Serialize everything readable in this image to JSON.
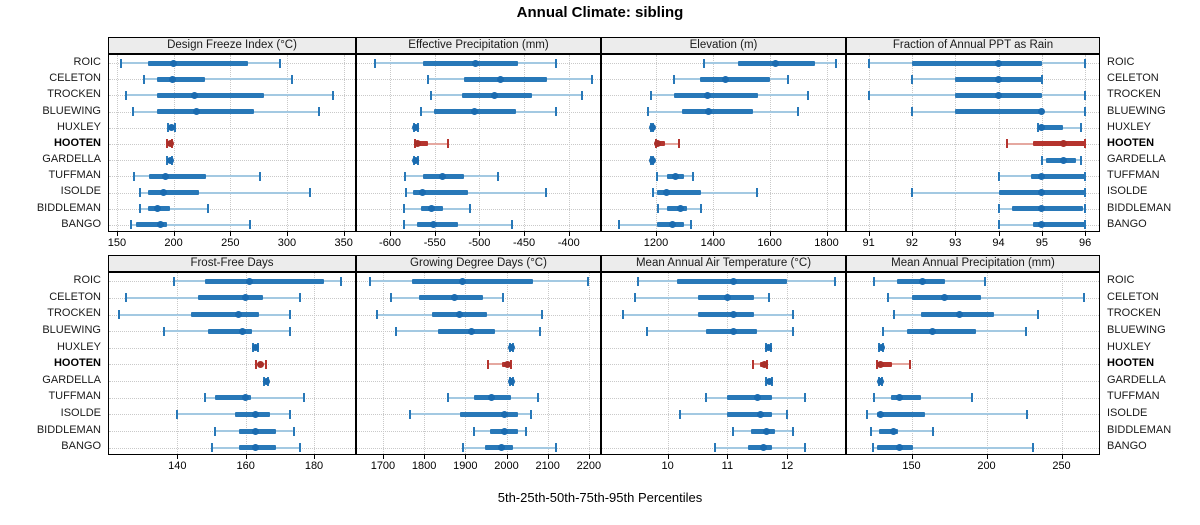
{
  "chart_data": {
    "type": "dotplot",
    "title": "Annual Climate: sibling",
    "caption": "5th-25th-50th-75th-95th Percentiles",
    "percentiles": [
      5,
      25,
      50,
      75,
      95
    ],
    "stations": [
      "ROIC",
      "CELETON",
      "TROCKEN",
      "BLUEWING",
      "HUXLEY",
      "HOOTEN",
      "GARDELLA",
      "TUFFMAN",
      "ISOLDE",
      "BIDDLEMAN",
      "BANGO"
    ],
    "highlight_station": "HOOTEN",
    "legend_position": "none",
    "grid": "dotted",
    "colors": {
      "series_blue": "#2878b8",
      "series_blue_light": "#a3c9e2",
      "series_blue_dot": "#1a6bb0",
      "highlight_red": "#b5342e",
      "highlight_red_light": "#e5a8a0",
      "highlight_red_dot": "#a82e28",
      "gridline": "#c9c9c9",
      "strip_bg": "#ececec",
      "panel_border": "#000000"
    },
    "panels": [
      {
        "title": "Design Freeze Index (°C)",
        "row": 0,
        "col": 0,
        "xlim": [
          143,
          360
        ],
        "ticks": [
          150,
          200,
          250,
          300,
          350
        ],
        "values": [
          [
            154,
            177,
            200,
            266,
            294
          ],
          [
            174,
            185,
            199,
            228,
            304
          ],
          [
            158,
            185,
            218,
            280,
            341
          ],
          [
            164,
            185,
            220,
            271,
            328
          ],
          [
            195,
            197,
            198,
            200,
            201
          ],
          [
            194,
            196,
            197,
            198,
            199
          ],
          [
            194,
            196,
            197,
            198,
            199
          ],
          [
            165,
            178,
            193,
            229,
            276
          ],
          [
            170,
            177,
            191,
            222,
            320
          ],
          [
            170,
            177,
            186,
            197,
            230
          ],
          [
            162,
            167,
            188,
            194,
            267
          ]
        ]
      },
      {
        "title": "Effective Precipitation (mm)",
        "row": 0,
        "col": 1,
        "xlim": [
          -637,
          -365
        ],
        "ticks": [
          -600,
          -550,
          -500,
          -450,
          -400
        ],
        "values": [
          [
            -617,
            -563,
            -504,
            -457,
            -414
          ],
          [
            -557,
            -517,
            -476,
            -424,
            -374
          ],
          [
            -554,
            -519,
            -483,
            -441,
            -385
          ],
          [
            -565,
            -551,
            -506,
            -459,
            -414
          ],
          [
            -573,
            -572,
            -571,
            -570,
            -569
          ],
          [
            -572,
            -571,
            -569,
            -558,
            -535
          ],
          [
            -573,
            -572,
            -571,
            -570,
            -569
          ],
          [
            -583,
            -563,
            -541,
            -517,
            -479
          ],
          [
            -582,
            -574,
            -564,
            -513,
            -426
          ],
          [
            -584,
            -565,
            -554,
            -541,
            -511
          ],
          [
            -584,
            -570,
            -551,
            -524,
            -463
          ]
        ]
      },
      {
        "title": "Elevation (m)",
        "row": 0,
        "col": 2,
        "xlim": [
          1010,
          1865
        ],
        "ticks": [
          1200,
          1400,
          1600,
          1800
        ],
        "values": [
          [
            1370,
            1490,
            1620,
            1760,
            1835
          ],
          [
            1262,
            1355,
            1445,
            1600,
            1663
          ],
          [
            1184,
            1265,
            1381,
            1558,
            1736
          ],
          [
            1172,
            1291,
            1384,
            1541,
            1698
          ],
          [
            1183,
            1185,
            1186,
            1188,
            1190
          ],
          [
            1199,
            1201,
            1204,
            1232,
            1280
          ],
          [
            1183,
            1185,
            1187,
            1189,
            1191
          ],
          [
            1203,
            1238,
            1267,
            1297,
            1331
          ],
          [
            1190,
            1203,
            1238,
            1360,
            1556
          ],
          [
            1207,
            1238,
            1285,
            1308,
            1360
          ],
          [
            1070,
            1203,
            1258,
            1297,
            1323
          ]
        ]
      },
      {
        "title": "Fraction of Annual PPT as Rain",
        "row": 0,
        "col": 3,
        "xlim": [
          90.5,
          96.32
        ],
        "ticks": [
          91,
          92,
          93,
          94,
          95,
          96
        ],
        "values": [
          [
            91,
            92,
            94,
            95,
            96
          ],
          [
            92,
            93,
            94,
            95,
            95
          ],
          [
            91,
            93,
            94,
            95,
            96
          ],
          [
            92,
            93,
            95,
            95,
            96
          ],
          [
            94.9,
            95,
            95,
            95.5,
            95.9
          ],
          [
            94.2,
            94.8,
            95.5,
            96,
            96
          ],
          [
            95,
            95.1,
            95.5,
            95.8,
            95.9
          ],
          [
            94,
            94.75,
            95,
            96,
            96
          ],
          [
            92,
            94,
            95,
            96,
            96
          ],
          [
            94,
            94.3,
            95,
            95.95,
            96
          ],
          [
            94,
            94.8,
            95,
            96,
            96
          ]
        ]
      },
      {
        "title": "Frost-Free Days",
        "row": 1,
        "col": 0,
        "xlim": [
          120,
          192
        ],
        "ticks": [
          140,
          160,
          180
        ],
        "values": [
          [
            139,
            148,
            161,
            183,
            188
          ],
          [
            125,
            146,
            160,
            165,
            176
          ],
          [
            123,
            144,
            158,
            164,
            173
          ],
          [
            136,
            149,
            159,
            162,
            173
          ],
          [
            162,
            162.5,
            163,
            163.2,
            163.7
          ],
          [
            163,
            163.8,
            164.3,
            164.8,
            166
          ],
          [
            165.3,
            165.7,
            166,
            166.2,
            166.6
          ],
          [
            148,
            151,
            160,
            161.5,
            177
          ],
          [
            140,
            157,
            163,
            167,
            173
          ],
          [
            151,
            158,
            163,
            169,
            174
          ],
          [
            150,
            158,
            163,
            169,
            176
          ]
        ]
      },
      {
        "title": "Growing Degree Days (°C)",
        "row": 1,
        "col": 1,
        "xlim": [
          1637,
          2227
        ],
        "ticks": [
          1700,
          1800,
          1900,
          2000,
          2100,
          2200
        ],
        "values": [
          [
            1669,
            1770,
            1894,
            2065,
            2198
          ],
          [
            1719,
            1788,
            1873,
            1944,
            1992
          ],
          [
            1685,
            1819,
            1885,
            1952,
            2087
          ],
          [
            1732,
            1833,
            1915,
            1972,
            2081
          ],
          [
            2008,
            2010,
            2012,
            2013,
            2015
          ],
          [
            1954,
            1990,
            2002,
            2008,
            2012
          ],
          [
            2008,
            2011,
            2013,
            2014,
            2016
          ],
          [
            1859,
            1920,
            1964,
            2010,
            2077
          ],
          [
            1766,
            1887,
            1994,
            2028,
            2060
          ],
          [
            1921,
            1960,
            1994,
            2028,
            2048
          ],
          [
            1895,
            1948,
            1988,
            2016,
            2121
          ]
        ]
      },
      {
        "title": "Mean Annual Air Temperature (°C)",
        "row": 1,
        "col": 2,
        "xlim": [
          8.9,
          12.97
        ],
        "ticks": [
          10,
          11,
          12
        ],
        "values": [
          [
            9.5,
            10.15,
            11.1,
            12.0,
            12.8
          ],
          [
            9.45,
            10.5,
            11.0,
            11.45,
            11.7
          ],
          [
            9.25,
            10.5,
            11.1,
            11.45,
            12.1
          ],
          [
            9.65,
            10.65,
            11.1,
            11.5,
            12.1
          ],
          [
            11.65,
            11.67,
            11.69,
            11.71,
            11.73
          ],
          [
            11.43,
            11.55,
            11.62,
            11.64,
            11.66
          ],
          [
            11.65,
            11.68,
            11.7,
            11.72,
            11.74
          ],
          [
            10.65,
            11.0,
            11.5,
            11.75,
            12.3
          ],
          [
            10.2,
            11.0,
            11.55,
            11.75,
            12.0
          ],
          [
            11.1,
            11.4,
            11.65,
            11.8,
            12.1
          ],
          [
            10.8,
            11.35,
            11.6,
            11.75,
            12.3
          ]
        ]
      },
      {
        "title": "Mean Annual Precipitation (mm)",
        "row": 1,
        "col": 3,
        "xlim": [
          107,
          275
        ],
        "ticks": [
          150,
          200,
          250
        ],
        "values": [
          [
            125,
            140,
            157,
            172,
            199
          ],
          [
            134,
            150,
            172,
            196,
            265
          ],
          [
            138,
            156,
            182,
            205,
            234
          ],
          [
            131,
            147,
            164,
            193,
            226
          ],
          [
            128,
            129,
            130,
            130.5,
            131
          ],
          [
            127,
            128,
            129,
            137,
            149
          ],
          [
            128,
            128.5,
            129,
            129.5,
            130
          ],
          [
            125,
            136,
            142,
            156,
            190
          ],
          [
            120,
            127,
            129,
            159,
            227
          ],
          [
            123,
            128,
            138,
            141,
            164
          ],
          [
            124,
            127,
            142,
            151,
            231
          ]
        ]
      }
    ]
  }
}
